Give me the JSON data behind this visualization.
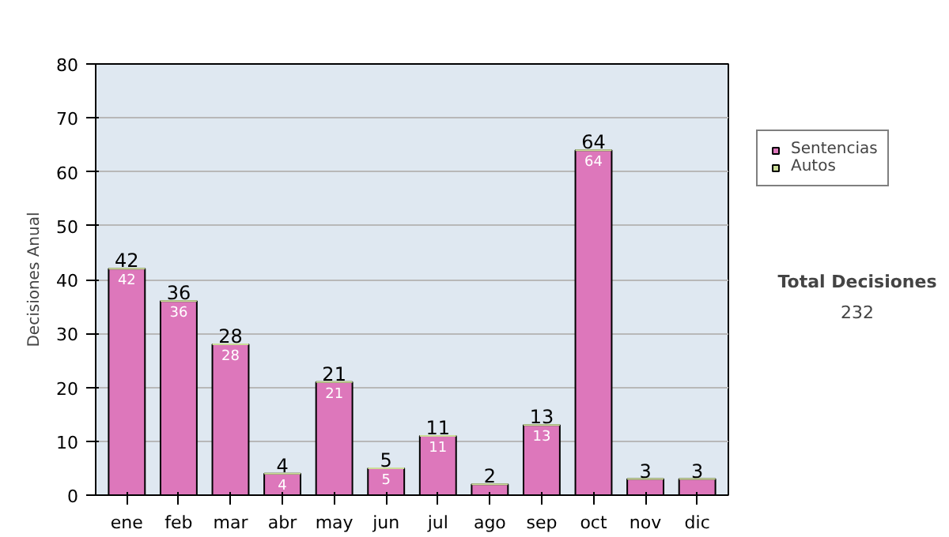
{
  "chart_data": {
    "type": "bar",
    "stacked": true,
    "ylabel": "Decisiones Anual",
    "categories": [
      "ene",
      "feb",
      "mar",
      "abr",
      "may",
      "jun",
      "jul",
      "ago",
      "sep",
      "oct",
      "nov",
      "dic"
    ],
    "series": [
      {
        "name": "Sentencias",
        "color": "#dd77bb",
        "values": [
          42,
          36,
          28,
          4,
          21,
          5,
          11,
          2,
          13,
          64,
          3,
          3
        ],
        "value_labels": [
          "42",
          "36",
          "28",
          "4",
          "21",
          "5",
          "11",
          null,
          "13",
          "64",
          null,
          null
        ]
      },
      {
        "name": "Autos",
        "color": "#ccdd99",
        "values": [
          0,
          0,
          0,
          0,
          0,
          0,
          0,
          0,
          0,
          0,
          0,
          0
        ]
      }
    ],
    "totals": [
      "42",
      "36",
      "28",
      "4",
      "21",
      "5",
      "11",
      "2",
      "13",
      "64",
      "3",
      "3"
    ],
    "ylim": [
      0,
      80
    ],
    "yticks": [
      0,
      10,
      20,
      30,
      40,
      50,
      60,
      70,
      80
    ],
    "grid": "y",
    "legend": "right",
    "annotations": [
      "Total Decisiones",
      "232"
    ]
  }
}
